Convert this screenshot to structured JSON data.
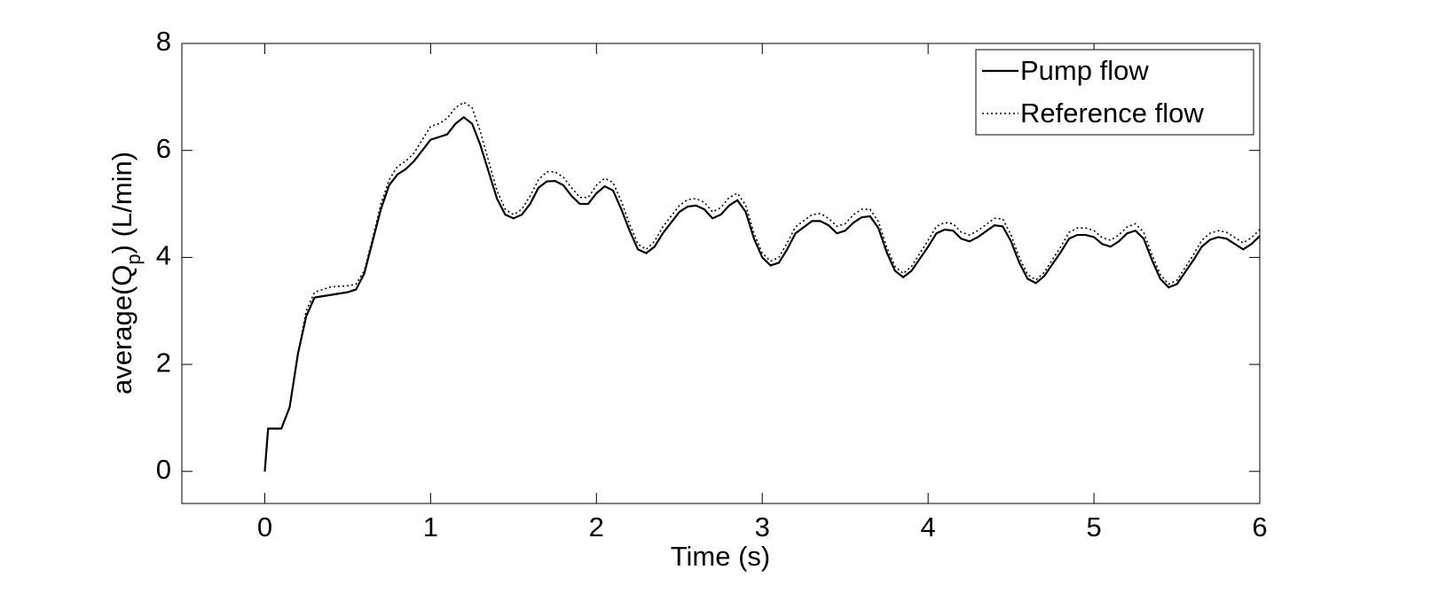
{
  "chart_data": {
    "type": "line",
    "xlabel": "Time (s)",
    "ylabel": {
      "main": "average(Q",
      "sub": "p",
      "rest": ") (L/min)"
    },
    "x": [
      0,
      0.02,
      0.1,
      0.15,
      0.2,
      0.25,
      0.3,
      0.4,
      0.5,
      0.55,
      0.6,
      0.65,
      0.7,
      0.75,
      0.8,
      0.85,
      0.9,
      0.95,
      1.0,
      1.05,
      1.1,
      1.15,
      1.2,
      1.25,
      1.3,
      1.35,
      1.4,
      1.45,
      1.5,
      1.55,
      1.6,
      1.65,
      1.7,
      1.75,
      1.8,
      1.85,
      1.9,
      1.95,
      2.0,
      2.05,
      2.1,
      2.15,
      2.2,
      2.25,
      2.3,
      2.35,
      2.4,
      2.5,
      2.55,
      2.6,
      2.65,
      2.7,
      2.75,
      2.8,
      2.85,
      2.9,
      2.95,
      3.0,
      3.05,
      3.1,
      3.15,
      3.2,
      3.3,
      3.35,
      3.4,
      3.45,
      3.5,
      3.55,
      3.6,
      3.65,
      3.7,
      3.75,
      3.8,
      3.85,
      3.9,
      4.0,
      4.05,
      4.1,
      4.15,
      4.2,
      4.25,
      4.3,
      4.4,
      4.45,
      4.5,
      4.55,
      4.6,
      4.65,
      4.7,
      4.8,
      4.85,
      4.9,
      4.95,
      5.0,
      5.05,
      5.1,
      5.15,
      5.2,
      5.25,
      5.3,
      5.35,
      5.4,
      5.45,
      5.5,
      5.6,
      5.65,
      5.7,
      5.75,
      5.8,
      5.85,
      5.9,
      5.95,
      6.0
    ],
    "series": [
      {
        "name": "Pump flow",
        "color": "#000000",
        "style": "solid",
        "values": [
          0,
          0.8,
          0.8,
          1.2,
          2.2,
          2.9,
          3.25,
          3.3,
          3.35,
          3.4,
          3.7,
          4.3,
          4.9,
          5.35,
          5.55,
          5.65,
          5.8,
          6.0,
          6.2,
          6.25,
          6.3,
          6.5,
          6.62,
          6.5,
          6.1,
          5.6,
          5.1,
          4.8,
          4.73,
          4.8,
          5.0,
          5.3,
          5.42,
          5.43,
          5.35,
          5.15,
          5.0,
          5.0,
          5.2,
          5.33,
          5.25,
          4.9,
          4.5,
          4.15,
          4.08,
          4.2,
          4.45,
          4.85,
          4.95,
          4.97,
          4.9,
          4.73,
          4.8,
          4.97,
          5.07,
          4.85,
          4.35,
          4.0,
          3.85,
          3.9,
          4.15,
          4.45,
          4.68,
          4.68,
          4.6,
          4.45,
          4.5,
          4.65,
          4.75,
          4.77,
          4.55,
          4.1,
          3.75,
          3.63,
          3.75,
          4.2,
          4.45,
          4.52,
          4.5,
          4.35,
          4.3,
          4.38,
          4.6,
          4.58,
          4.3,
          3.9,
          3.6,
          3.52,
          3.65,
          4.1,
          4.35,
          4.42,
          4.42,
          4.38,
          4.25,
          4.2,
          4.3,
          4.45,
          4.5,
          4.35,
          3.95,
          3.6,
          3.44,
          3.5,
          3.95,
          4.2,
          4.33,
          4.38,
          4.35,
          4.25,
          4.15,
          4.25,
          4.4
        ]
      },
      {
        "name": "Reference flow",
        "color": "#000000",
        "style": "dotted",
        "values": [
          0,
          0.8,
          0.8,
          1.2,
          2.2,
          3.0,
          3.35,
          3.45,
          3.47,
          3.5,
          3.75,
          4.35,
          5.0,
          5.45,
          5.7,
          5.8,
          5.95,
          6.2,
          6.45,
          6.5,
          6.6,
          6.8,
          6.9,
          6.8,
          6.35,
          5.8,
          5.25,
          4.9,
          4.8,
          4.9,
          5.15,
          5.45,
          5.6,
          5.6,
          5.5,
          5.3,
          5.12,
          5.12,
          5.35,
          5.48,
          5.4,
          5.05,
          4.62,
          4.25,
          4.15,
          4.3,
          4.57,
          4.97,
          5.08,
          5.1,
          5.03,
          4.85,
          4.93,
          5.12,
          5.2,
          4.98,
          4.45,
          4.08,
          3.93,
          4.0,
          4.27,
          4.57,
          4.8,
          4.82,
          4.73,
          4.58,
          4.63,
          4.8,
          4.9,
          4.9,
          4.67,
          4.2,
          3.83,
          3.7,
          3.83,
          4.32,
          4.58,
          4.65,
          4.63,
          4.47,
          4.42,
          4.5,
          4.73,
          4.72,
          4.42,
          4.0,
          3.68,
          3.58,
          3.72,
          4.2,
          4.47,
          4.55,
          4.55,
          4.5,
          4.37,
          4.32,
          4.42,
          4.57,
          4.63,
          4.47,
          4.05,
          3.68,
          3.5,
          3.57,
          4.05,
          4.32,
          4.45,
          4.5,
          4.47,
          4.37,
          4.27,
          4.37,
          4.52
        ]
      }
    ],
    "xlim": [
      -0.5,
      6
    ],
    "ylim": [
      -0.6,
      8
    ],
    "xticks": [
      0,
      1,
      2,
      3,
      4,
      5,
      6
    ],
    "yticks": [
      0,
      2,
      4,
      6,
      8
    ],
    "grid": false,
    "legend": "upper right"
  }
}
